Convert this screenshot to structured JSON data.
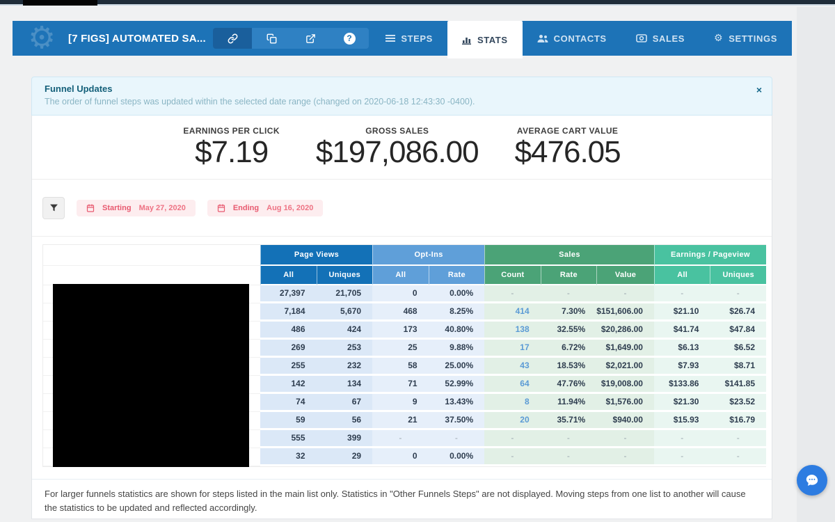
{
  "navbar": {
    "title": "[7 FIGS] AUTOMATED SA...",
    "toolbar_icons": [
      "link-icon",
      "clone-icon",
      "external-link-icon",
      "help-icon"
    ],
    "tabs": [
      {
        "label": "STEPS",
        "active": false
      },
      {
        "label": "STATS",
        "active": true
      },
      {
        "label": "CONTACTS",
        "active": false
      },
      {
        "label": "SALES",
        "active": false
      },
      {
        "label": "SETTINGS",
        "active": false
      }
    ],
    "colors": {
      "navbar": "#1d73b7",
      "toolbar": "#2f81c3",
      "toolbar_selected": "#1a5f9c",
      "active_tab_text": "#33475c"
    }
  },
  "alert": {
    "title": "Funnel Updates",
    "message": "The order of funnel steps was updated within the selected date range (changed on 2020-06-18 12:43:30 -0400).",
    "close": "×"
  },
  "stats": [
    {
      "label": "EARNINGS PER CLICK",
      "value": "$7.19"
    },
    {
      "label": "GROSS SALES",
      "value": "$197,086.00"
    },
    {
      "label": "AVERAGE CART VALUE",
      "value": "$476.05"
    }
  ],
  "filters": {
    "starting_label": "Starting",
    "starting_value": "May 27, 2020",
    "ending_label": "Ending",
    "ending_value": "Aug 16, 2020"
  },
  "table": {
    "groups": [
      {
        "label": "Page Views",
        "columns": [
          "All",
          "Uniques"
        ],
        "header_color": "#1371b7",
        "cell_class": "g0"
      },
      {
        "label": "Opt-Ins",
        "columns": [
          "All",
          "Rate"
        ],
        "header_color": "#5f9fd9",
        "cell_class": "g1"
      },
      {
        "label": "Sales",
        "columns": [
          "Count",
          "Rate",
          "Value"
        ],
        "header_color": "#4ba377",
        "cell_class": "g2"
      },
      {
        "label": "Earnings / Pageview",
        "columns": [
          "All",
          "Uniques"
        ],
        "header_color": "#49c2a0",
        "cell_class": "g3"
      }
    ],
    "link_column_index": 4,
    "rows": [
      [
        "27,397",
        "21,705",
        "0",
        "0.00%",
        "-",
        "-",
        "-",
        "-",
        "-"
      ],
      [
        "7,184",
        "5,670",
        "468",
        "8.25%",
        "414",
        "7.30%",
        "$151,606.00",
        "$21.10",
        "$26.74"
      ],
      [
        "486",
        "424",
        "173",
        "40.80%",
        "138",
        "32.55%",
        "$20,286.00",
        "$41.74",
        "$47.84"
      ],
      [
        "269",
        "253",
        "25",
        "9.88%",
        "17",
        "6.72%",
        "$1,649.00",
        "$6.13",
        "$6.52"
      ],
      [
        "255",
        "232",
        "58",
        "25.00%",
        "43",
        "18.53%",
        "$2,021.00",
        "$7.93",
        "$8.71"
      ],
      [
        "142",
        "134",
        "71",
        "52.99%",
        "64",
        "47.76%",
        "$19,008.00",
        "$133.86",
        "$141.85"
      ],
      [
        "74",
        "67",
        "9",
        "13.43%",
        "8",
        "11.94%",
        "$1,576.00",
        "$21.30",
        "$23.52"
      ],
      [
        "59",
        "56",
        "21",
        "37.50%",
        "20",
        "35.71%",
        "$940.00",
        "$15.93",
        "$16.79"
      ],
      [
        "555",
        "399",
        "-",
        "-",
        "-",
        "-",
        "-",
        "-",
        "-"
      ],
      [
        "32",
        "29",
        "0",
        "0.00%",
        "-",
        "-",
        "-",
        "-",
        "-"
      ]
    ]
  },
  "footer": {
    "note": "For larger funnels statistics are shown for steps listed in the main list only. Statistics in \"Other Funnels Steps\" are not displayed. Moving steps from one list to another will cause the statistics to be updated and reflected accordingly."
  }
}
